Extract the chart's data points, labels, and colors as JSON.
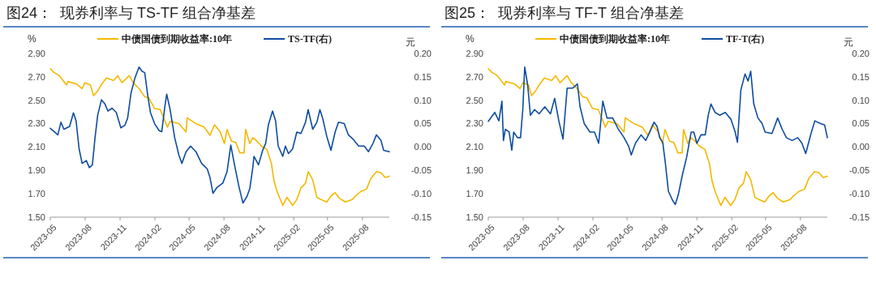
{
  "chart_data": [
    {
      "type": "line",
      "title": "图24：  现券利率与 TS-TF 组合净基差",
      "ylabel": "%",
      "y2label": "元",
      "legend": "top",
      "xlim": [
        "2023-05-01",
        "2025-10-11"
      ],
      "xticks": [
        "2023-05",
        "2023-08",
        "2023-11",
        "2024-02",
        "2024-05",
        "2024-08",
        "2024-11",
        "2025-02",
        "2025-05",
        "2025-08"
      ],
      "ylim": [
        1.5,
        2.9
      ],
      "yticks": [
        {
          "value": 2.9,
          "label": "2.90"
        },
        {
          "value": 2.7,
          "label": "2.70"
        },
        {
          "value": 2.5,
          "label": "2.50"
        },
        {
          "value": 2.3,
          "label": "2.30"
        },
        {
          "value": 2.1,
          "label": "2.10"
        },
        {
          "value": 1.9,
          "label": "1.90"
        },
        {
          "value": 1.7,
          "label": "1.70"
        },
        {
          "value": 1.5,
          "label": "1.50"
        }
      ],
      "y2lim": [
        -0.15,
        0.2
      ],
      "y2ticks": [
        {
          "value": 0.2,
          "label": "0.20"
        },
        {
          "value": 0.15,
          "label": "0.15"
        },
        {
          "value": 0.1,
          "label": "0.10"
        },
        {
          "value": 0.05,
          "label": "0.05"
        },
        {
          "value": 0,
          "label": "0.00"
        },
        {
          "value": -0.05,
          "label": "-0.05"
        },
        {
          "value": -0.1,
          "label": "-0.10"
        },
        {
          "value": -0.15,
          "label": "-0.15"
        }
      ],
      "series": [
        {
          "name": "中债国债到期收益率:10年",
          "color": "#f5b800",
          "x": [
            "2023-05-01",
            "2023-05-10",
            "2023-05-25",
            "2023-06-13",
            "2023-06-16",
            "2023-07-09",
            "2023-07-24",
            "2023-07-31",
            "2023-08-15",
            "2023-08-23",
            "2023-09-03",
            "2023-09-14",
            "2023-09-26",
            "2023-10-15",
            "2023-10-26",
            "2023-11-06",
            "2023-11-25",
            "2023-12-06",
            "2023-12-21",
            "2024-01-05",
            "2024-01-16",
            "2024-01-31",
            "2024-02-15",
            "2024-03-05",
            "2024-03-12",
            "2024-04-04",
            "2024-04-23",
            "2024-04-26",
            "2024-05-19",
            "2024-06-10",
            "2024-06-25",
            "2024-07-07",
            "2024-07-22",
            "2024-08-02",
            "2024-08-09",
            "2024-08-21",
            "2024-09-01",
            "2024-09-12",
            "2024-09-23",
            "2024-09-27",
            "2024-10-08",
            "2024-10-16",
            "2024-10-27",
            "2024-11-07",
            "2024-11-22",
            "2024-12-04",
            "2024-12-11",
            "2024-12-19",
            "2025-01-03",
            "2025-01-14",
            "2025-01-29",
            "2025-02-09",
            "2025-02-20",
            "2025-03-04",
            "2025-03-11",
            "2025-03-23",
            "2025-04-03",
            "2025-04-14",
            "2025-04-29",
            "2025-05-10",
            "2025-05-21",
            "2025-06-02",
            "2025-06-17",
            "2025-07-05",
            "2025-07-13",
            "2025-07-28",
            "2025-08-12",
            "2025-08-23",
            "2025-09-07",
            "2025-09-19",
            "2025-09-30",
            "2025-10-11"
          ],
          "values": [
            2.77,
            2.74,
            2.71,
            2.63,
            2.66,
            2.64,
            2.6,
            2.65,
            2.63,
            2.54,
            2.58,
            2.64,
            2.69,
            2.67,
            2.71,
            2.65,
            2.71,
            2.65,
            2.6,
            2.53,
            2.52,
            2.43,
            2.42,
            2.27,
            2.32,
            2.3,
            2.23,
            2.35,
            2.3,
            2.27,
            2.2,
            2.29,
            2.23,
            2.13,
            2.25,
            2.15,
            2.14,
            2.05,
            2.05,
            2.25,
            2.13,
            2.18,
            2.15,
            2.11,
            2.08,
            1.96,
            1.81,
            1.72,
            1.6,
            1.67,
            1.6,
            1.65,
            1.75,
            1.79,
            1.89,
            1.82,
            1.67,
            1.65,
            1.63,
            1.68,
            1.71,
            1.66,
            1.63,
            1.65,
            1.68,
            1.72,
            1.74,
            1.83,
            1.89,
            1.88,
            1.84,
            1.85
          ]
        },
        {
          "name": "TS-TF(右)",
          "color": "#0e4c9f",
          "axis": "y2",
          "x": [
            "2023-05-01",
            "2023-05-21",
            "2023-05-29",
            "2023-06-06",
            "2023-06-21",
            "2023-07-01",
            "2023-07-08",
            "2023-07-16",
            "2023-07-24",
            "2023-08-04",
            "2023-08-12",
            "2023-08-20",
            "2023-08-27",
            "2023-09-03",
            "2023-09-13",
            "2023-09-22",
            "2023-09-30",
            "2023-10-11",
            "2023-10-22",
            "2023-11-03",
            "2023-11-14",
            "2023-11-21",
            "2023-11-30",
            "2023-12-10",
            "2023-12-21",
            "2023-12-29",
            "2024-01-05",
            "2024-01-13",
            "2024-01-20",
            "2024-01-31",
            "2024-02-12",
            "2024-02-19",
            "2024-02-27",
            "2024-03-03",
            "2024-03-12",
            "2024-03-24",
            "2024-04-04",
            "2024-04-12",
            "2024-04-23",
            "2024-05-05",
            "2024-05-19",
            "2024-06-03",
            "2024-06-18",
            "2024-06-25",
            "2024-07-03",
            "2024-07-14",
            "2024-07-29",
            "2024-08-09",
            "2024-08-19",
            "2024-08-28",
            "2024-09-09",
            "2024-09-20",
            "2024-10-01",
            "2024-10-08",
            "2024-10-16",
            "2024-10-19",
            "2024-10-31",
            "2024-11-11",
            "2024-11-19",
            "2024-11-26",
            "2024-12-07",
            "2024-12-15",
            "2024-12-22",
            "2025-01-03",
            "2025-01-10",
            "2025-01-18",
            "2025-01-29",
            "2025-02-09",
            "2025-02-20",
            "2025-03-04",
            "2025-03-11",
            "2025-03-23",
            "2025-04-03",
            "2025-04-11",
            "2025-04-18",
            "2025-04-29",
            "2025-05-10",
            "2025-05-21",
            "2025-05-30",
            "2025-06-14",
            "2025-06-25",
            "2025-07-07",
            "2025-07-22",
            "2025-08-06",
            "2025-08-17",
            "2025-08-29",
            "2025-09-07",
            "2025-09-19",
            "2025-09-26",
            "2025-10-11"
          ],
          "values": [
            0.04,
            0.026,
            0.053,
            0.038,
            0.044,
            0.073,
            0.056,
            -0.004,
            -0.035,
            -0.029,
            -0.044,
            -0.038,
            0.02,
            0.068,
            0.101,
            0.092,
            0.077,
            0.083,
            0.074,
            0.041,
            0.047,
            0.062,
            0.116,
            0.147,
            0.171,
            0.162,
            0.159,
            0.11,
            0.074,
            0.05,
            0.035,
            0.033,
            0.086,
            0.113,
            0.08,
            0.02,
            -0.017,
            -0.035,
            -0.01,
            0.002,
            -0.01,
            -0.035,
            -0.047,
            -0.065,
            -0.099,
            -0.086,
            -0.077,
            -0.053,
            0.004,
            -0.035,
            -0.083,
            -0.12,
            -0.105,
            -0.089,
            -0.044,
            -0.02,
            -0.038,
            -0.007,
            0.008,
            0.047,
            0.077,
            0.056,
            0.002,
            -0.02,
            0.002,
            -0.014,
            -0.004,
            0.032,
            0.029,
            0.053,
            0.08,
            0.038,
            0.053,
            0.08,
            0.062,
            0.023,
            -0.007,
            0.032,
            0.053,
            0.05,
            0.026,
            0.017,
            0.002,
            0.002,
            -0.01,
            0.008,
            0.026,
            0.014,
            -0.007,
            -0.01
          ]
        }
      ]
    },
    {
      "type": "line",
      "title": "图25：  现券利率与 TF-T 组合净基差",
      "ylabel": "%",
      "y2label": "元",
      "legend": "top",
      "xlim": [
        "2023-05-01",
        "2025-10-11"
      ],
      "xticks": [
        "2023-05",
        "2023-08",
        "2023-11",
        "2024-02",
        "2024-05",
        "2024-08",
        "2024-11",
        "2025-02",
        "2025-05",
        "2025-08"
      ],
      "ylim": [
        1.5,
        2.9
      ],
      "yticks": [
        {
          "value": 2.9,
          "label": "2.90"
        },
        {
          "value": 2.7,
          "label": "2.70"
        },
        {
          "value": 2.5,
          "label": "2.50"
        },
        {
          "value": 2.3,
          "label": "2.30"
        },
        {
          "value": 2.1,
          "label": "2.10"
        },
        {
          "value": 1.9,
          "label": "1.90"
        },
        {
          "value": 1.7,
          "label": "1.70"
        },
        {
          "value": 1.5,
          "label": "1.50"
        }
      ],
      "y2lim": [
        -0.15,
        0.2
      ],
      "y2ticks": [
        {
          "value": 0.2,
          "label": "0.20"
        },
        {
          "value": 0.15,
          "label": "0.15"
        },
        {
          "value": 0.1,
          "label": "0.10"
        },
        {
          "value": 0.05,
          "label": "0.05"
        },
        {
          "value": 0,
          "label": "0.00"
        },
        {
          "value": -0.05,
          "label": "-0.05"
        },
        {
          "value": -0.1,
          "label": "-0.10"
        },
        {
          "value": -0.15,
          "label": "-0.15"
        }
      ],
      "series": [
        {
          "name": "中债国债到期收益率:10年",
          "color": "#f5b800",
          "x": [
            "2023-05-01",
            "2023-05-10",
            "2023-05-25",
            "2023-06-13",
            "2023-06-16",
            "2023-07-09",
            "2023-07-24",
            "2023-07-31",
            "2023-08-15",
            "2023-08-23",
            "2023-09-03",
            "2023-09-14",
            "2023-09-26",
            "2023-10-15",
            "2023-10-26",
            "2023-11-06",
            "2023-11-25",
            "2023-12-06",
            "2023-12-21",
            "2024-01-05",
            "2024-01-16",
            "2024-01-31",
            "2024-02-15",
            "2024-03-05",
            "2024-03-12",
            "2024-04-04",
            "2024-04-23",
            "2024-04-26",
            "2024-05-19",
            "2024-06-10",
            "2024-06-25",
            "2024-07-07",
            "2024-07-22",
            "2024-08-02",
            "2024-08-09",
            "2024-08-21",
            "2024-09-01",
            "2024-09-12",
            "2024-09-23",
            "2024-09-27",
            "2024-10-08",
            "2024-10-16",
            "2024-10-27",
            "2024-11-07",
            "2024-11-22",
            "2024-12-04",
            "2024-12-11",
            "2024-12-19",
            "2025-01-03",
            "2025-01-14",
            "2025-01-29",
            "2025-02-09",
            "2025-02-20",
            "2025-03-04",
            "2025-03-11",
            "2025-03-23",
            "2025-04-03",
            "2025-04-14",
            "2025-04-29",
            "2025-05-10",
            "2025-05-21",
            "2025-06-02",
            "2025-06-17",
            "2025-07-05",
            "2025-07-13",
            "2025-07-28",
            "2025-08-12",
            "2025-08-23",
            "2025-09-07",
            "2025-09-19",
            "2025-09-30",
            "2025-10-11"
          ],
          "values": [
            2.77,
            2.74,
            2.71,
            2.63,
            2.66,
            2.64,
            2.6,
            2.65,
            2.63,
            2.54,
            2.58,
            2.64,
            2.69,
            2.67,
            2.71,
            2.65,
            2.71,
            2.65,
            2.6,
            2.53,
            2.52,
            2.43,
            2.42,
            2.27,
            2.32,
            2.3,
            2.23,
            2.35,
            2.3,
            2.27,
            2.2,
            2.29,
            2.23,
            2.13,
            2.25,
            2.15,
            2.14,
            2.05,
            2.05,
            2.25,
            2.13,
            2.18,
            2.15,
            2.11,
            2.08,
            1.96,
            1.81,
            1.72,
            1.6,
            1.67,
            1.6,
            1.65,
            1.75,
            1.79,
            1.89,
            1.82,
            1.67,
            1.65,
            1.63,
            1.68,
            1.71,
            1.66,
            1.63,
            1.65,
            1.68,
            1.72,
            1.74,
            1.83,
            1.89,
            1.88,
            1.84,
            1.85
          ]
        },
        {
          "name": "TF-T(右)",
          "color": "#0e4c9f",
          "axis": "y2",
          "x": [
            "2023-05-01",
            "2023-05-18",
            "2023-05-29",
            "2023-06-06",
            "2023-06-10",
            "2023-06-15",
            "2023-06-25",
            "2023-07-02",
            "2023-07-07",
            "2023-07-17",
            "2023-07-25",
            "2023-07-31",
            "2023-08-05",
            "2023-08-13",
            "2023-08-20",
            "2023-08-31",
            "2023-09-12",
            "2023-09-27",
            "2023-10-12",
            "2023-10-23",
            "2023-11-03",
            "2023-11-14",
            "2023-11-25",
            "2023-12-10",
            "2023-12-22",
            "2023-12-29",
            "2024-01-09",
            "2024-01-24",
            "2024-02-05",
            "2024-02-16",
            "2024-02-27",
            "2024-03-09",
            "2024-03-24",
            "2024-04-08",
            "2024-04-23",
            "2024-05-05",
            "2024-05-12",
            "2024-05-23",
            "2024-06-07",
            "2024-06-19",
            "2024-06-30",
            "2024-07-11",
            "2024-07-19",
            "2024-07-26",
            "2024-08-03",
            "2024-08-10",
            "2024-08-18",
            "2024-08-29",
            "2024-09-05",
            "2024-09-13",
            "2024-09-24",
            "2024-10-05",
            "2024-10-17",
            "2024-10-24",
            "2024-11-01",
            "2024-11-12",
            "2024-11-23",
            "2024-12-01",
            "2024-12-08",
            "2024-12-19",
            "2024-12-31",
            "2025-01-15",
            "2025-01-30",
            "2025-02-10",
            "2025-02-16",
            "2025-02-25",
            "2025-03-08",
            "2025-03-16",
            "2025-03-23",
            "2025-03-31",
            "2025-04-11",
            "2025-04-22",
            "2025-04-30",
            "2025-05-18",
            "2025-06-02",
            "2025-06-14",
            "2025-06-25",
            "2025-07-10",
            "2025-07-25",
            "2025-08-05",
            "2025-08-15",
            "2025-08-28",
            "2025-09-08",
            "2025-09-23",
            "2025-10-04",
            "2025-10-11"
          ],
          "values": [
            0.055,
            0.074,
            0.056,
            0.098,
            0.014,
            0.038,
            0.032,
            -0.007,
            0.032,
            0.02,
            0.02,
            0.08,
            0.171,
            0.132,
            0.068,
            0.08,
            0.071,
            0.086,
            0.071,
            0.104,
            0.056,
            0.017,
            0.126,
            0.126,
            0.135,
            0.086,
            0.05,
            0.032,
            0.032,
            0.008,
            0.098,
            0.062,
            0.062,
            0.038,
            0.02,
            0.002,
            -0.017,
            0.008,
            0.026,
            0.014,
            0.032,
            0.053,
            0.044,
            0.02,
            0.01,
            -0.035,
            -0.095,
            -0.114,
            -0.123,
            -0.102,
            -0.059,
            -0.022,
            0.032,
            0.032,
            0.008,
            0.026,
            0.026,
            0.068,
            0.092,
            0.074,
            0.068,
            0.074,
            0.059,
            0.032,
            0.01,
            0.122,
            0.156,
            0.141,
            0.162,
            0.092,
            0.062,
            0.05,
            0.032,
            0.029,
            0.062,
            0.038,
            0.02,
            0.014,
            0.02,
            0.008,
            -0.014,
            0.026,
            0.056,
            0.05,
            0.047,
            0.02
          ]
        }
      ]
    }
  ]
}
